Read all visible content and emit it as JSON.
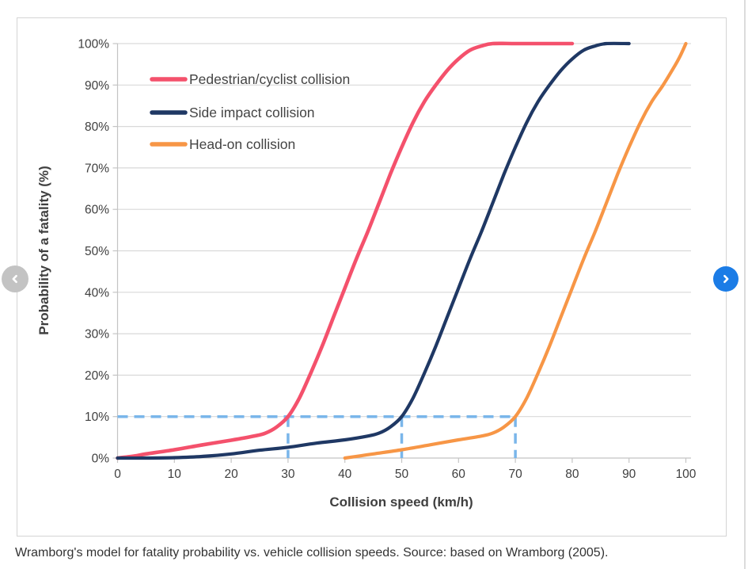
{
  "caption": "Wramborg's model for fatality probability vs. vehicle collision speeds. Source: based on Wramborg (2005).",
  "carousel": {
    "prev_icon": "chevron-left-icon",
    "next_icon": "chevron-right-icon",
    "prev_button_color": "#c3c3c3",
    "next_button_color": "#1b7ce6",
    "glyph_color": "#ffffff"
  },
  "colors": {
    "card_border": "#d4d4d4",
    "gridline": "#d9d9d9",
    "axis_line": "#c4c4c4",
    "tick_text": "#3f3f3f",
    "axis_title_text": "#3f3f3f",
    "legend_text": "#444444",
    "caption_text": "#333333"
  },
  "chart_data": {
    "type": "line",
    "title": "",
    "xlabel": "Collision speed (km/h)",
    "ylabel": "Probability of a fatality (%)",
    "xlim": [
      0,
      100
    ],
    "ylim": [
      0,
      100
    ],
    "x_ticks": [
      0,
      10,
      20,
      30,
      40,
      50,
      60,
      70,
      80,
      90,
      100
    ],
    "y_ticks": [
      0,
      10,
      20,
      30,
      40,
      50,
      60,
      70,
      80,
      90,
      100
    ],
    "y_tick_suffix": "%",
    "grid": "horizontal",
    "legend_position": "inside-top-left",
    "series": [
      {
        "name": "Pedestrian/cyclist collision",
        "color": "#f4516c",
        "width": 4.6,
        "points": [
          [
            0,
            0
          ],
          [
            3,
            0.5
          ],
          [
            5,
            1
          ],
          [
            10,
            2
          ],
          [
            15,
            3.2
          ],
          [
            20,
            4.3
          ],
          [
            24,
            5.3
          ],
          [
            26,
            6
          ],
          [
            28,
            7.5
          ],
          [
            30,
            10
          ],
          [
            32,
            14.5
          ],
          [
            34,
            20.5
          ],
          [
            36,
            27
          ],
          [
            38,
            34
          ],
          [
            40,
            41
          ],
          [
            42,
            48
          ],
          [
            44,
            54.5
          ],
          [
            46,
            61.5
          ],
          [
            48,
            68.5
          ],
          [
            50,
            75
          ],
          [
            52,
            81
          ],
          [
            54,
            86
          ],
          [
            56,
            90
          ],
          [
            58,
            93.5
          ],
          [
            60,
            96.3
          ],
          [
            62,
            98.4
          ],
          [
            64,
            99.4
          ],
          [
            66,
            100
          ],
          [
            70,
            100
          ],
          [
            75,
            100
          ],
          [
            80,
            100
          ]
        ]
      },
      {
        "name": "Side impact collision",
        "color": "#1f3864",
        "width": 4.2,
        "points": [
          [
            0,
            0
          ],
          [
            5,
            0
          ],
          [
            10,
            0.1
          ],
          [
            15,
            0.4
          ],
          [
            20,
            1
          ],
          [
            25,
            1.9
          ],
          [
            30,
            2.6
          ],
          [
            35,
            3.6
          ],
          [
            40,
            4.4
          ],
          [
            44,
            5.3
          ],
          [
            46,
            6
          ],
          [
            48,
            7.5
          ],
          [
            50,
            10
          ],
          [
            52,
            14.5
          ],
          [
            54,
            20.5
          ],
          [
            56,
            27
          ],
          [
            58,
            34
          ],
          [
            60,
            41
          ],
          [
            62,
            48
          ],
          [
            64,
            54.5
          ],
          [
            66,
            61.5
          ],
          [
            68,
            68.5
          ],
          [
            70,
            75
          ],
          [
            72,
            81
          ],
          [
            74,
            86
          ],
          [
            76,
            90
          ],
          [
            78,
            93.5
          ],
          [
            80,
            96.3
          ],
          [
            82,
            98.4
          ],
          [
            84,
            99.4
          ],
          [
            86,
            100
          ],
          [
            90,
            100
          ]
        ]
      },
      {
        "name": "Head-on collision",
        "color": "#f79646",
        "width": 4.2,
        "points": [
          [
            40,
            0
          ],
          [
            43,
            0.6
          ],
          [
            45,
            1
          ],
          [
            50,
            2
          ],
          [
            55,
            3.2
          ],
          [
            60,
            4.4
          ],
          [
            64,
            5.3
          ],
          [
            66,
            6
          ],
          [
            68,
            7.5
          ],
          [
            70,
            10
          ],
          [
            72,
            14.5
          ],
          [
            74,
            20.5
          ],
          [
            76,
            27
          ],
          [
            78,
            34
          ],
          [
            80,
            41
          ],
          [
            82,
            48
          ],
          [
            84,
            54.5
          ],
          [
            86,
            61.5
          ],
          [
            88,
            68.5
          ],
          [
            90,
            75
          ],
          [
            92,
            81
          ],
          [
            94,
            86
          ],
          [
            96,
            90
          ],
          [
            98,
            94.5
          ],
          [
            99,
            97
          ],
          [
            100,
            100
          ]
        ]
      }
    ],
    "guides": {
      "style": "dashed",
      "color": "#7ab6ea",
      "horizontal": {
        "y": 10,
        "x_from": 0,
        "x_to": 70
      },
      "verticals": [
        {
          "x": 30,
          "y_from": 0,
          "y_to": 10
        },
        {
          "x": 50,
          "y_from": 0,
          "y_to": 10
        },
        {
          "x": 70,
          "y_from": 0,
          "y_to": 10
        }
      ],
      "meaning": "10% fatality probability reached at 30, 50 and 70 km/h"
    }
  }
}
